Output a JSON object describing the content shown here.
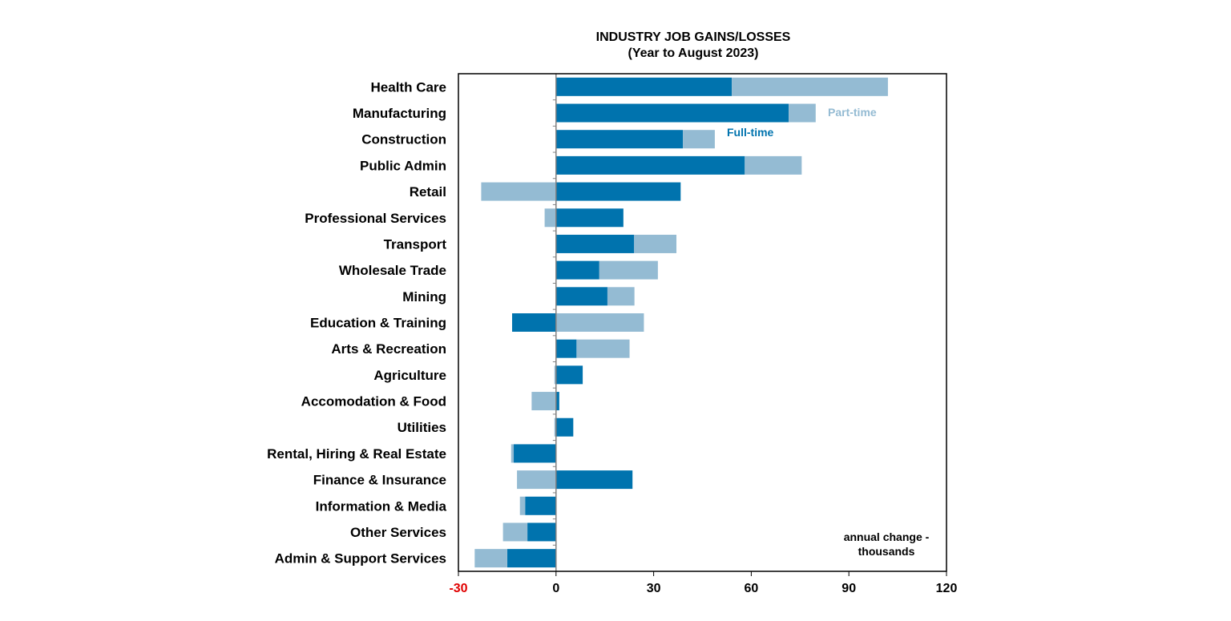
{
  "chart_data": {
    "type": "bar",
    "orientation": "horizontal",
    "stacked": true,
    "title": "INDUSTRY JOB GAINS/LOSSES",
    "subtitle": "(Year to August 2023)",
    "categories": [
      "Health Care",
      "Manufacturing",
      "Construction",
      "Public Admin",
      "Retail",
      "Professional Services",
      "Transport",
      "Wholesale Trade",
      "Mining",
      "Education & Training",
      "Arts & Recreation",
      "Agriculture",
      "Accomodation & Food",
      "Utilities",
      "Rental, Hiring & Real Estate",
      "Finance & Insurance",
      "Information & Media",
      "Other Services",
      "Admin & Support Services"
    ],
    "series": [
      {
        "name": "Full-time",
        "color": "#0073AE",
        "values": [
          54,
          71.5,
          39,
          58,
          38.3,
          20.7,
          24,
          13.3,
          15.8,
          -13.5,
          6.3,
          8.2,
          1,
          5.3,
          -13,
          23.5,
          -9.5,
          -8.8,
          -15
        ]
      },
      {
        "name": "Part-time",
        "color": "#94BBD3",
        "values": [
          48,
          8.3,
          9.8,
          17.5,
          -23,
          -3.5,
          13,
          18,
          8.3,
          27,
          16.3,
          -0.5,
          -7.5,
          -0.5,
          -0.8,
          -12,
          -1.6,
          -7.5,
          -10
        ]
      }
    ],
    "xlim": [
      -30,
      120
    ],
    "xticks": [
      "-30",
      "0",
      "30",
      "60",
      "90",
      "120"
    ],
    "xtick_colors": [
      "#E00000",
      "#000000",
      "#000000",
      "#000000",
      "#000000",
      "#000000"
    ],
    "axis_note_line1": "annual change -",
    "axis_note_line2": "thousands",
    "series_annotations": [
      "Part-time",
      "Full-time"
    ]
  }
}
